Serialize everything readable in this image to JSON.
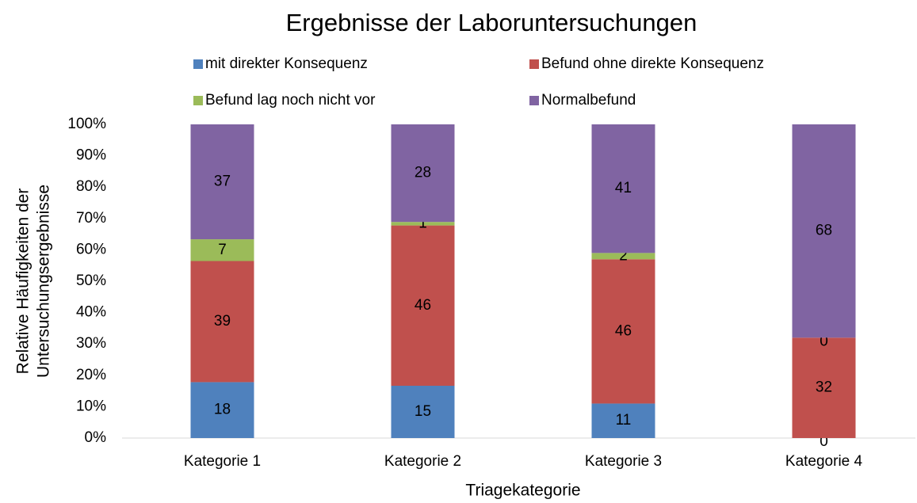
{
  "chart_data": {
    "type": "bar",
    "stacking": "percent",
    "title": "Ergebnisse der Laboruntersuchungen",
    "x_label": "Triagekategorie",
    "y_label": [
      "Relative Häufigkeiten der",
      "Untersuchungsergebnisse"
    ],
    "categories": [
      "Kategorie 1",
      "Kategorie 2",
      "Kategorie 3",
      "Kategorie 4"
    ],
    "series": [
      {
        "name": "mit direkter Konsequenz",
        "color": "#4f81bd",
        "values": [
          18,
          15,
          11,
          0
        ]
      },
      {
        "name": "Befund ohne direkte Konsequenz",
        "color": "#c0504d",
        "values": [
          39,
          46,
          46,
          32
        ]
      },
      {
        "name": "Befund lag noch nicht vor",
        "color": "#9bbb59",
        "values": [
          7,
          1,
          2,
          0
        ]
      },
      {
        "name": "Normalbefund",
        "color": "#8064a2",
        "values": [
          37,
          28,
          41,
          68
        ]
      }
    ],
    "ylim": [
      0,
      100
    ],
    "yticks": [
      {
        "value": 0,
        "label": "0%"
      },
      {
        "value": 10,
        "label": "10%"
      },
      {
        "value": 20,
        "label": "20%"
      },
      {
        "value": 30,
        "label": "30%"
      },
      {
        "value": 40,
        "label": "40%"
      },
      {
        "value": 50,
        "label": "50%"
      },
      {
        "value": 60,
        "label": "60%"
      },
      {
        "value": 70,
        "label": "70%"
      },
      {
        "value": 80,
        "label": "80%"
      },
      {
        "value": 90,
        "label": "90%"
      },
      {
        "value": 100,
        "label": "100%"
      }
    ],
    "grid": false,
    "legend": "top"
  }
}
